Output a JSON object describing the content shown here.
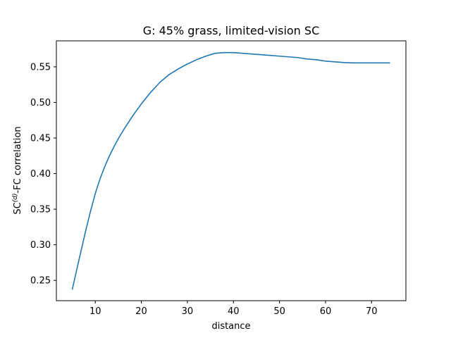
{
  "chart_data": {
    "type": "line",
    "title": "G: 45% grass, limited-vision SC",
    "xlabel": "distance",
    "ylabel": {
      "prefix": "SC",
      "superscript": "(d)",
      "suffix": "-FC correlation"
    },
    "xlim": [
      1.55,
      77.45
    ],
    "ylim": [
      0.2215,
      0.5865
    ],
    "xticks": [
      10,
      20,
      30,
      40,
      50,
      60,
      70
    ],
    "yticks": [
      0.25,
      0.3,
      0.35,
      0.4,
      0.45,
      0.5,
      0.55
    ],
    "ytick_labels": [
      "0.25",
      "0.30",
      "0.35",
      "0.40",
      "0.45",
      "0.50",
      "0.55"
    ],
    "grid": false,
    "color": "#1f77b4",
    "series": [
      {
        "x": [
          5,
          6,
          7,
          8,
          9,
          10,
          11,
          12,
          13,
          14,
          15,
          16,
          17,
          18,
          19,
          20,
          22,
          24,
          26,
          28,
          30,
          32,
          34,
          36,
          38,
          40,
          42,
          44,
          46,
          48,
          50,
          52,
          54,
          56,
          58,
          60,
          62,
          64,
          66,
          68,
          70,
          72,
          74
        ],
        "y": [
          0.237,
          0.266,
          0.294,
          0.322,
          0.348,
          0.372,
          0.392,
          0.409,
          0.424,
          0.437,
          0.449,
          0.46,
          0.47,
          0.48,
          0.489,
          0.498,
          0.514,
          0.528,
          0.539,
          0.547,
          0.554,
          0.56,
          0.565,
          0.569,
          0.57,
          0.57,
          0.569,
          0.568,
          0.567,
          0.566,
          0.565,
          0.564,
          0.563,
          0.561,
          0.56,
          0.558,
          0.557,
          0.556,
          0.5555,
          0.5555,
          0.5555,
          0.5555,
          0.5555
        ]
      }
    ]
  }
}
